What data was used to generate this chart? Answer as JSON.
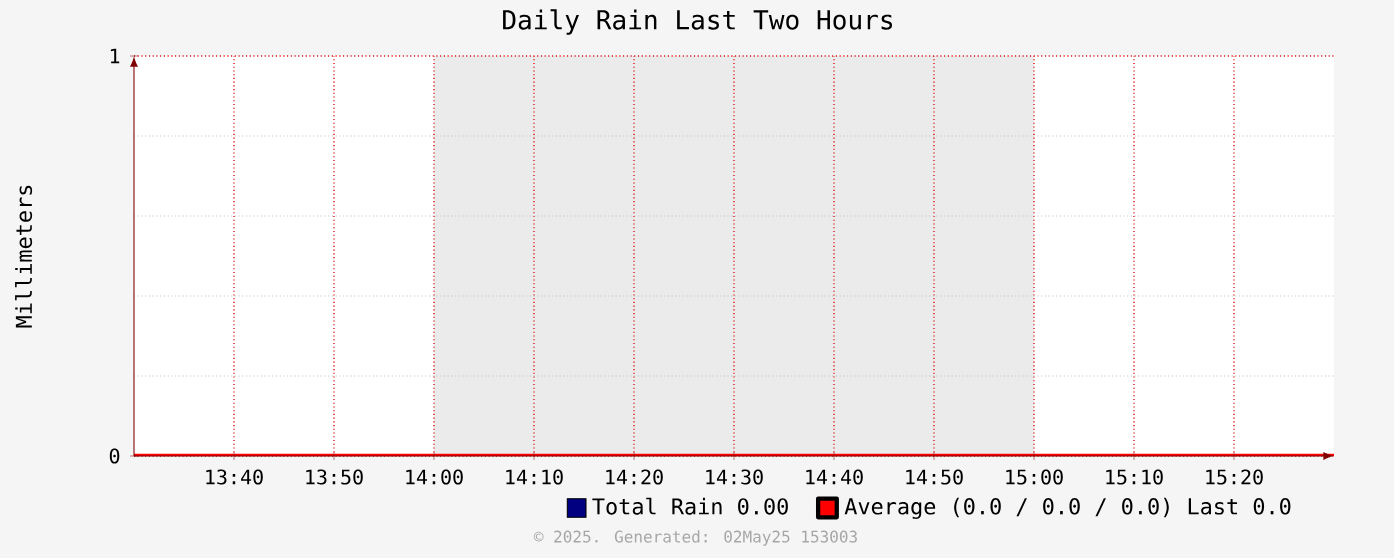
{
  "chart_data": {
    "type": "line",
    "title": "Daily Rain Last Two Hours",
    "ylabel": "Millimeters",
    "x": [
      13.5,
      15.5
    ],
    "series": [
      {
        "name": "Total Rain  0.00",
        "color": "#000080",
        "values": [
          null,
          null
        ]
      },
      {
        "name": "Average (0.0 / 0.0 / 0.0) Last 0.0",
        "color": "#ff0000",
        "values": [
          0,
          0
        ]
      }
    ],
    "xlim": [
      13.5,
      15.5
    ],
    "xticks": [
      {
        "value": 13.666667,
        "label": "13:40"
      },
      {
        "value": 13.833333,
        "label": "13:50"
      },
      {
        "value": 14,
        "label": "14:00"
      },
      {
        "value": 14.166667,
        "label": "14:10"
      },
      {
        "value": 14.333333,
        "label": "14:20"
      },
      {
        "value": 14.5,
        "label": "14:30"
      },
      {
        "value": 14.666667,
        "label": "14:40"
      },
      {
        "value": 14.833333,
        "label": "14:50"
      },
      {
        "value": 15,
        "label": "15:00"
      },
      {
        "value": 15.166667,
        "label": "15:10"
      },
      {
        "value": 15.333333,
        "label": "15:20"
      }
    ],
    "ylim": [
      0,
      1
    ],
    "yticks": [
      0,
      1
    ],
    "bands": [
      {
        "axis": "x",
        "from": 14,
        "to": 15,
        "color": "#ebebeb"
      }
    ],
    "grid": true,
    "legend": "bottom",
    "annotations": [
      "© 2025. Generated: 02May25 153003"
    ]
  }
}
